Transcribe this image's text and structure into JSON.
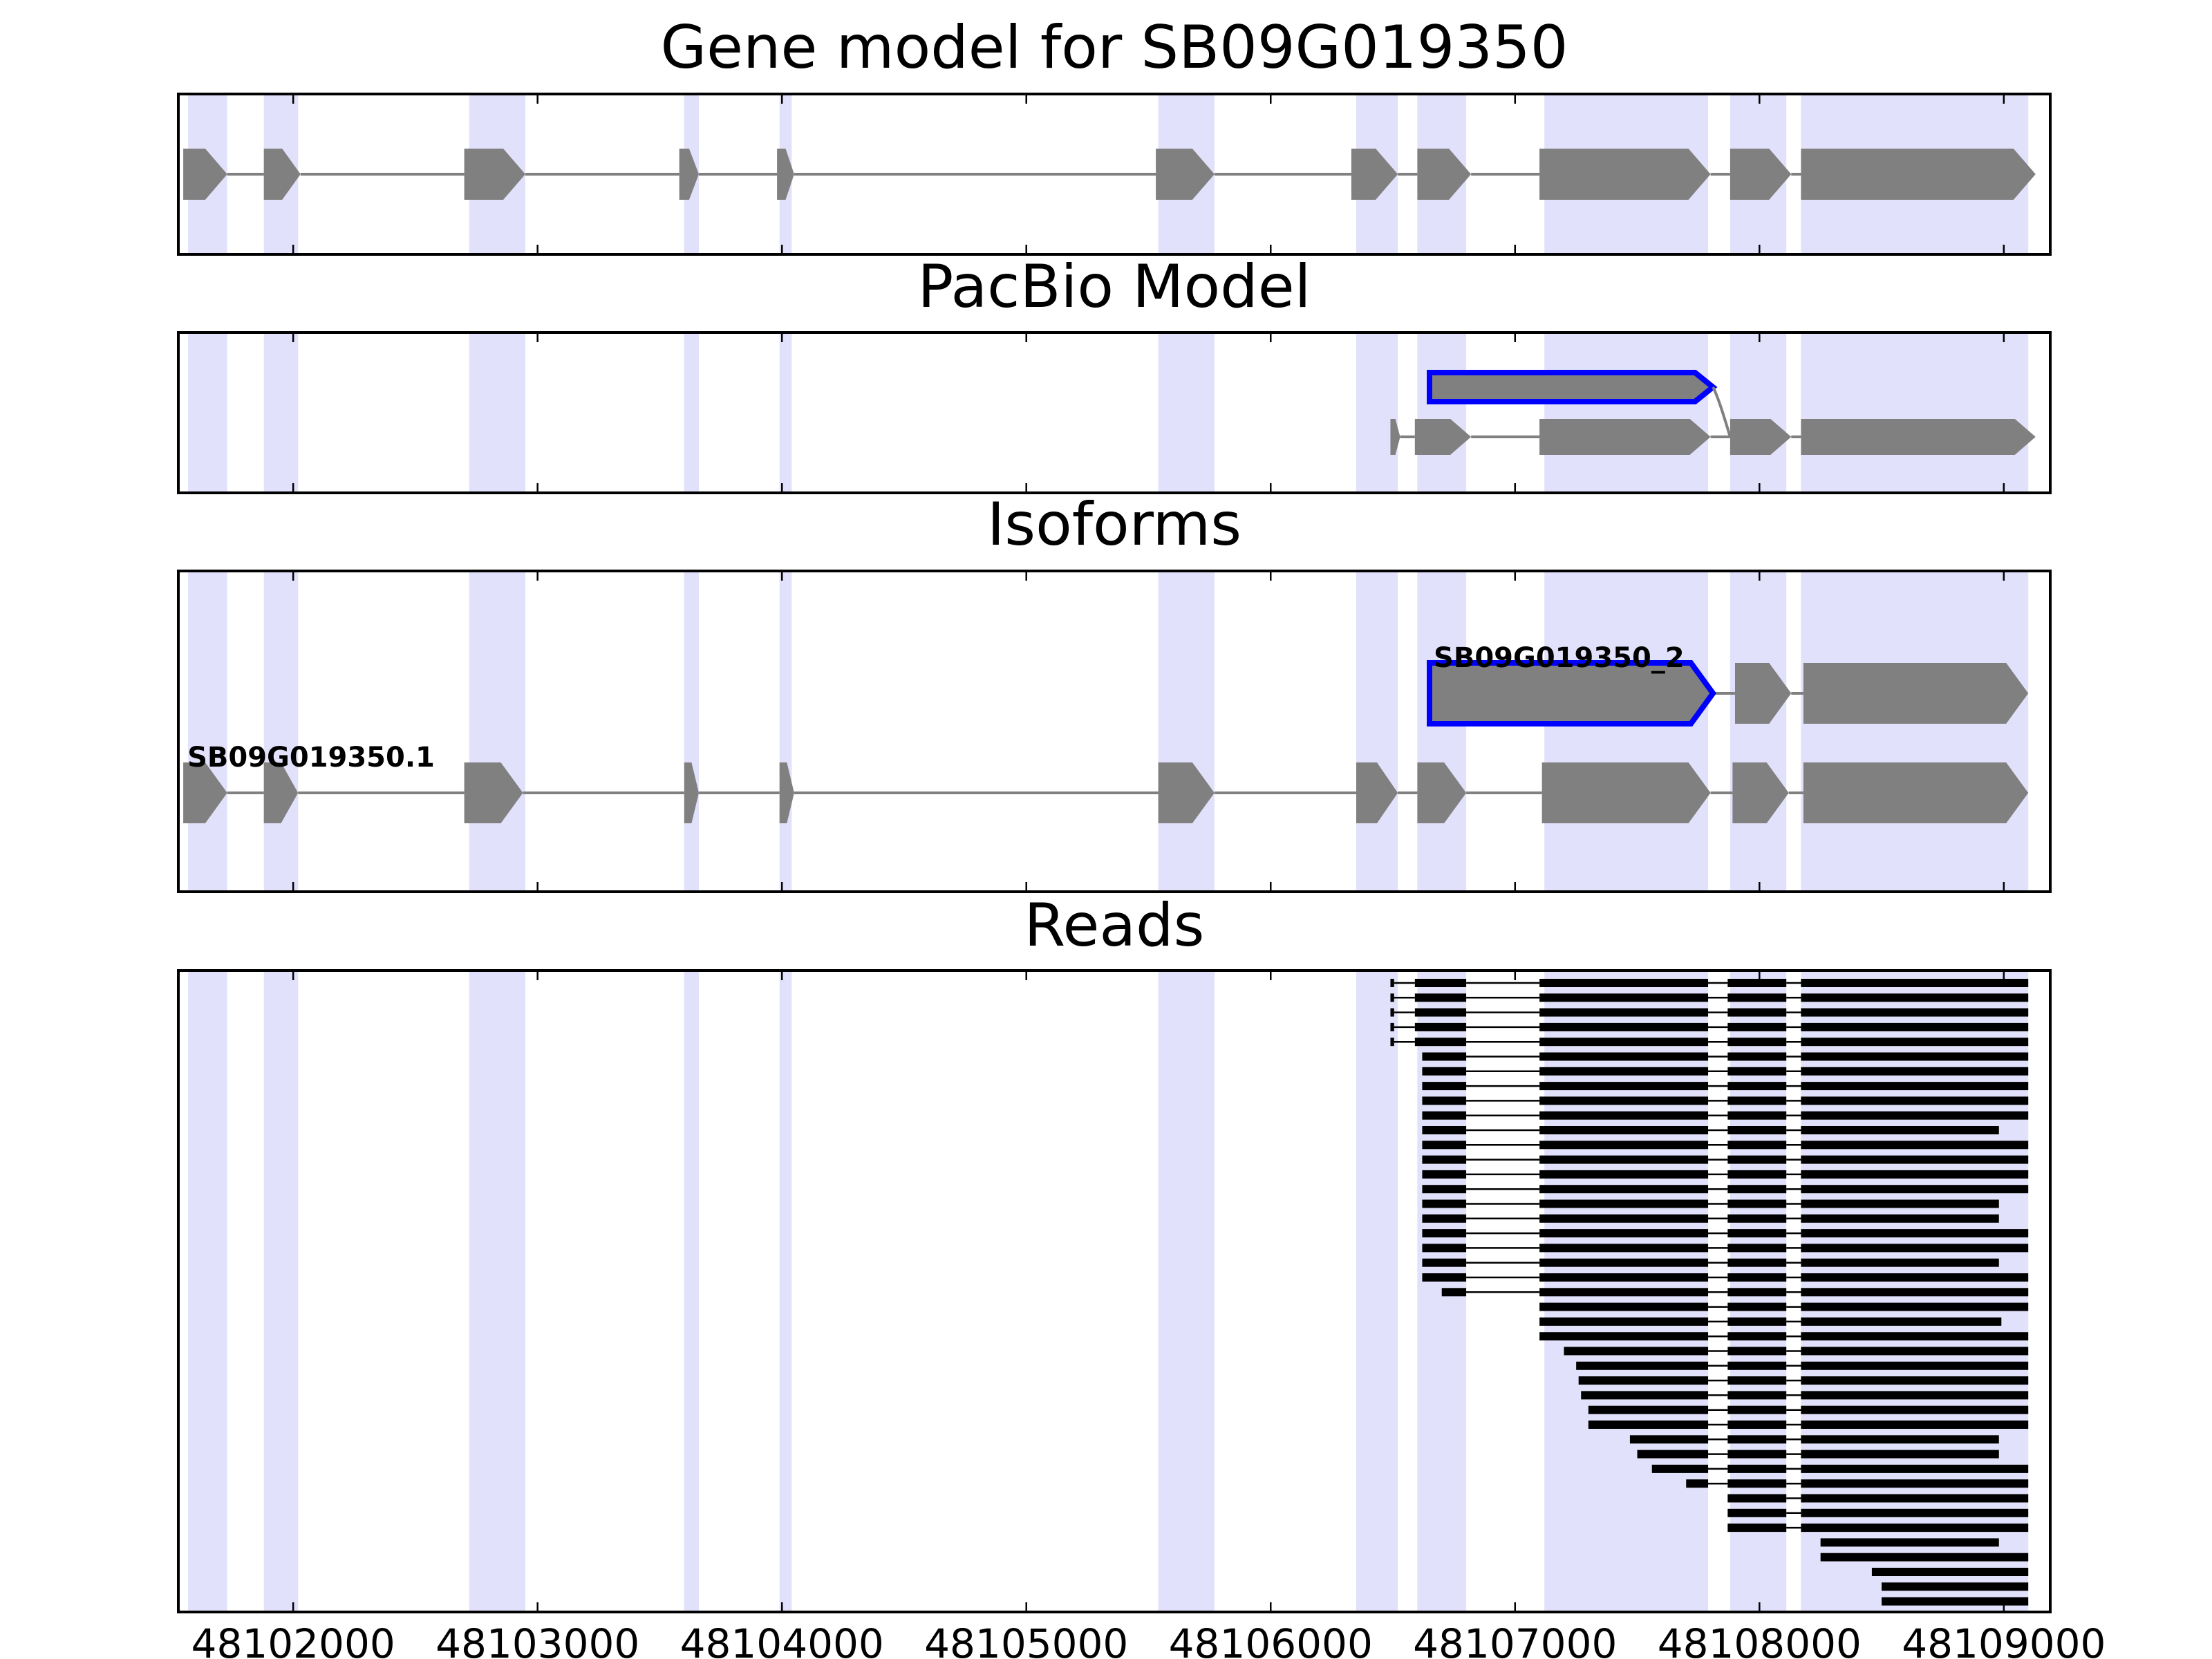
{
  "figure": {
    "titles": [
      "Gene model for SB09G019350",
      "PacBio Model",
      "Isoforms",
      "Reads"
    ]
  },
  "chart_data": {
    "type": "gene_structure",
    "x_axis": {
      "range": [
        48101530,
        48109190
      ],
      "ticks": [
        48102000,
        48103000,
        48104000,
        48105000,
        48106000,
        48107000,
        48108000,
        48109000
      ],
      "tick_labels": [
        "48102000",
        "48103000",
        "48104000",
        "48105000",
        "48106000",
        "48107000",
        "48108000",
        "48109000"
      ]
    },
    "colors": {
      "highlight": "#e1e1fb",
      "exon": "#808080",
      "intron": "#808080",
      "novel_outline": "#0000ff",
      "read": "#000000"
    },
    "strand": "+",
    "highlight_regions": [
      [
        48101570,
        48101730
      ],
      [
        48101880,
        48102020
      ],
      [
        48102720,
        48102950
      ],
      [
        48103600,
        48103660
      ],
      [
        48103990,
        48104040
      ],
      [
        48105540,
        48105770
      ],
      [
        48106350,
        48106520
      ],
      [
        48106600,
        48106800
      ],
      [
        48107120,
        48107790
      ],
      [
        48107880,
        48108110
      ],
      [
        48108170,
        48109100
      ]
    ],
    "gene_model": {
      "exons": [
        [
          48101550,
          48101730
        ],
        [
          48101880,
          48102030
        ],
        [
          48102700,
          48102950
        ],
        [
          48103580,
          48103660
        ],
        [
          48103980,
          48104050
        ],
        [
          48105530,
          48105770
        ],
        [
          48106330,
          48106520
        ],
        [
          48106600,
          48106820
        ],
        [
          48107100,
          48107800
        ],
        [
          48107880,
          48108130
        ],
        [
          48108170,
          48109130
        ]
      ]
    },
    "pacbio_model": {
      "isoforms": [
        {
          "novel": true,
          "exons": [
            [
              48106650,
              48107810
            ]
          ]
        },
        {
          "novel": false,
          "exons": [
            [
              48106490,
              48106530
            ],
            [
              48106590,
              48106820
            ],
            [
              48107100,
              48107800
            ],
            [
              48107880,
              48108130
            ],
            [
              48108170,
              48109130
            ]
          ]
        }
      ]
    },
    "isoforms": [
      {
        "name": "SB09G019350_2",
        "novel": true,
        "exons": [
          [
            48106650,
            48107810
          ],
          [
            48107900,
            48108130
          ],
          [
            48108180,
            48109100
          ]
        ]
      },
      {
        "name": "SB09G019350.1",
        "novel": false,
        "exons": [
          [
            48101550,
            48101730
          ],
          [
            48101880,
            48102020
          ],
          [
            48102700,
            48102940
          ],
          [
            48103600,
            48103660
          ],
          [
            48103990,
            48104050
          ],
          [
            48105540,
            48105770
          ],
          [
            48106350,
            48106520
          ],
          [
            48106600,
            48106800
          ],
          [
            48107110,
            48107800
          ],
          [
            48107890,
            48108120
          ],
          [
            48108180,
            48109100
          ]
        ]
      }
    ],
    "reads_exon_template": [
      [
        48106590,
        48106800
      ],
      [
        48107100,
        48107790
      ],
      [
        48107870,
        48108110
      ],
      [
        48108170,
        48109100
      ]
    ],
    "reads": [
      [
        48106490,
        48109110
      ],
      [
        48106490,
        48109110
      ],
      [
        48106490,
        48109110
      ],
      [
        48106490,
        48109110
      ],
      [
        48106490,
        48109110
      ],
      [
        48106620,
        48109110
      ],
      [
        48106620,
        48109110
      ],
      [
        48106620,
        48109110
      ],
      [
        48106620,
        48109110
      ],
      [
        48106620,
        48109110
      ],
      [
        48106620,
        48108980
      ],
      [
        48106620,
        48109110
      ],
      [
        48106620,
        48109110
      ],
      [
        48106620,
        48109110
      ],
      [
        48106620,
        48109110
      ],
      [
        48106620,
        48108980
      ],
      [
        48106620,
        48108980
      ],
      [
        48106620,
        48109110
      ],
      [
        48106620,
        48109110
      ],
      [
        48106620,
        48108980
      ],
      [
        48106620,
        48109110
      ],
      [
        48106700,
        48109110
      ],
      [
        48106950,
        48109110
      ],
      [
        48107100,
        48108990
      ],
      [
        48107100,
        48109110
      ],
      [
        48107200,
        48109110
      ],
      [
        48107250,
        48109110
      ],
      [
        48107260,
        48109110
      ],
      [
        48107270,
        48109110
      ],
      [
        48107300,
        48109110
      ],
      [
        48107300,
        48109110
      ],
      [
        48107470,
        48108980
      ],
      [
        48107500,
        48108980
      ],
      [
        48107560,
        48109110
      ],
      [
        48107700,
        48109120
      ],
      [
        48107870,
        48109120
      ],
      [
        48107870,
        48109120
      ],
      [
        48107870,
        48109120
      ],
      [
        48108250,
        48108980
      ],
      [
        48108250,
        48109120
      ],
      [
        48108460,
        48109110
      ],
      [
        48108500,
        48109110
      ],
      [
        48108500,
        48109110
      ]
    ]
  }
}
